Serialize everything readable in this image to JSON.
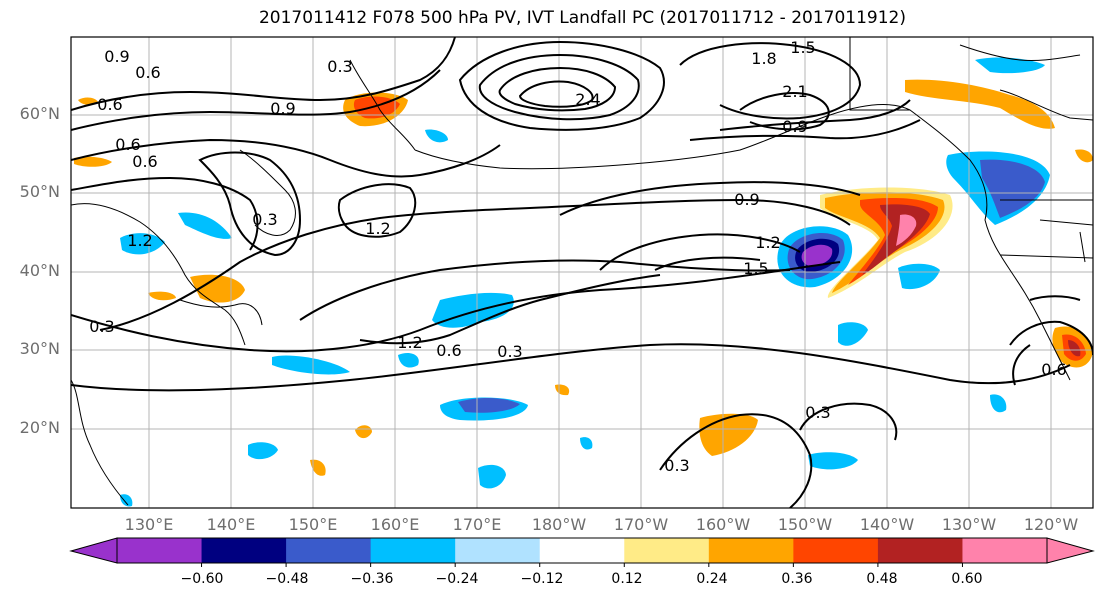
{
  "title": "2017011412 F078 500 hPa PV, IVT Landfall PC (2017011712 - 2017011912)",
  "lat_labels": [
    "60°N",
    "50°N",
    "40°N",
    "30°N",
    "20°N"
  ],
  "lon_labels": [
    "130°E",
    "140°E",
    "150°E",
    "160°E",
    "170°E",
    "180°W",
    "170°W",
    "160°W",
    "150°W",
    "140°W",
    "130°W",
    "120°W"
  ],
  "colorbar": {
    "ticks": [
      "−0.60",
      "−0.48",
      "−0.36",
      "−0.24",
      "−0.12",
      "0.12",
      "0.24",
      "0.36",
      "0.48",
      "0.60"
    ],
    "colors": [
      "#9932CC",
      "#000080",
      "#3A5BCB",
      "#00BFFF",
      "#B0E2FF",
      "#FFFFFF",
      "#FFEB87",
      "#FFA500",
      "#FF4500",
      "#B22222",
      "#FF82AB"
    ]
  },
  "contour_labels": [
    "0.9",
    "0.6",
    "0.3",
    "1.5",
    "1.8",
    "2.1",
    "2.4",
    "0.9",
    "0.6",
    "0.9",
    "0.6",
    "1.2",
    "0.3",
    "0.9",
    "1.2",
    "1.5",
    "1.2",
    "0.6",
    "0.3",
    "0.3",
    "0.3",
    "0.3",
    "0.6",
    "0.6",
    "1.2"
  ]
}
